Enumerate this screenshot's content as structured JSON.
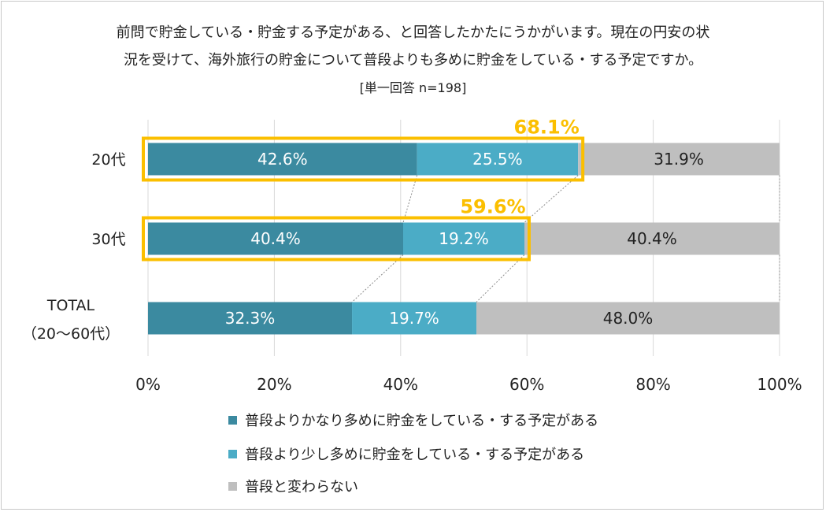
{
  "chart_data": {
    "type": "bar",
    "orientation": "horizontal",
    "stacked": true,
    "title_line1": "前問で貯金している・貯金する予定がある、と回答したかたにうかがいます。現在の円安の状",
    "title_line2": "況を受けて、海外旅行の貯金について普段よりも多めに貯金をしている・する予定ですか。",
    "subtitle": "[単一回答 n=198]",
    "categories": [
      {
        "label": "20代",
        "sub": ""
      },
      {
        "label": "30代",
        "sub": ""
      },
      {
        "label": "TOTAL",
        "sub": "（20～60代）"
      }
    ],
    "series": [
      {
        "name": "普段よりかなり多めに貯金をしている・する予定がある",
        "color": "#3b8aa0",
        "values": [
          42.6,
          40.4,
          32.3
        ]
      },
      {
        "name": "普段より少し多めに貯金をしている・する予定がある",
        "color": "#4bacc6",
        "values": [
          25.5,
          19.2,
          19.7
        ]
      },
      {
        "name": "普段と変わらない",
        "color": "#bfbfbf",
        "values": [
          31.9,
          40.4,
          48.0
        ]
      }
    ],
    "value_labels": [
      [
        "42.6%",
        "25.5%",
        "31.9%"
      ],
      [
        "40.4%",
        "19.2%",
        "40.4%"
      ],
      [
        "32.3%",
        "19.7%",
        "48.0%"
      ]
    ],
    "highlights": [
      {
        "category_index": 0,
        "label": "68.1%",
        "color": "#fbbf00"
      },
      {
        "category_index": 1,
        "label": "59.6%",
        "color": "#fbbf00"
      }
    ],
    "xlim": [
      0,
      100
    ],
    "xticks": [
      0,
      20,
      40,
      60,
      80,
      100
    ],
    "xtick_labels": [
      "0%",
      "20%",
      "40%",
      "60%",
      "80%",
      "100%"
    ],
    "grid": true,
    "legend_position": "bottom-left"
  }
}
